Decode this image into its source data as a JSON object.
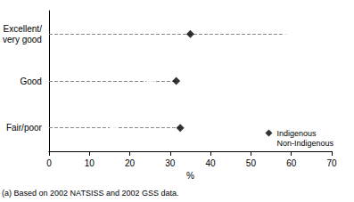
{
  "chart_data": {
    "type": "dot",
    "categories": [
      "Excellent/ very good",
      "Good",
      "Fair/poor"
    ],
    "series": [
      {
        "name": "Indigenous",
        "color": "#000000",
        "marker": "diamond",
        "values": [
          35,
          31.5,
          32.5
        ]
      },
      {
        "name": "Non-Indigenous",
        "color": "#000000",
        "marker": "open_circle",
        "values": [
          59,
          25,
          16
        ]
      }
    ],
    "orientation": "horizontal",
    "xlabel": "%",
    "xlim": [
      0,
      70
    ],
    "xticks": [
      0,
      10,
      20,
      30,
      40,
      50,
      60,
      70
    ],
    "grid": false,
    "legend": "lower right",
    "annotations": [
      "(a) Based on 2002 NATSISS and 2002 GSS data."
    ]
  }
}
